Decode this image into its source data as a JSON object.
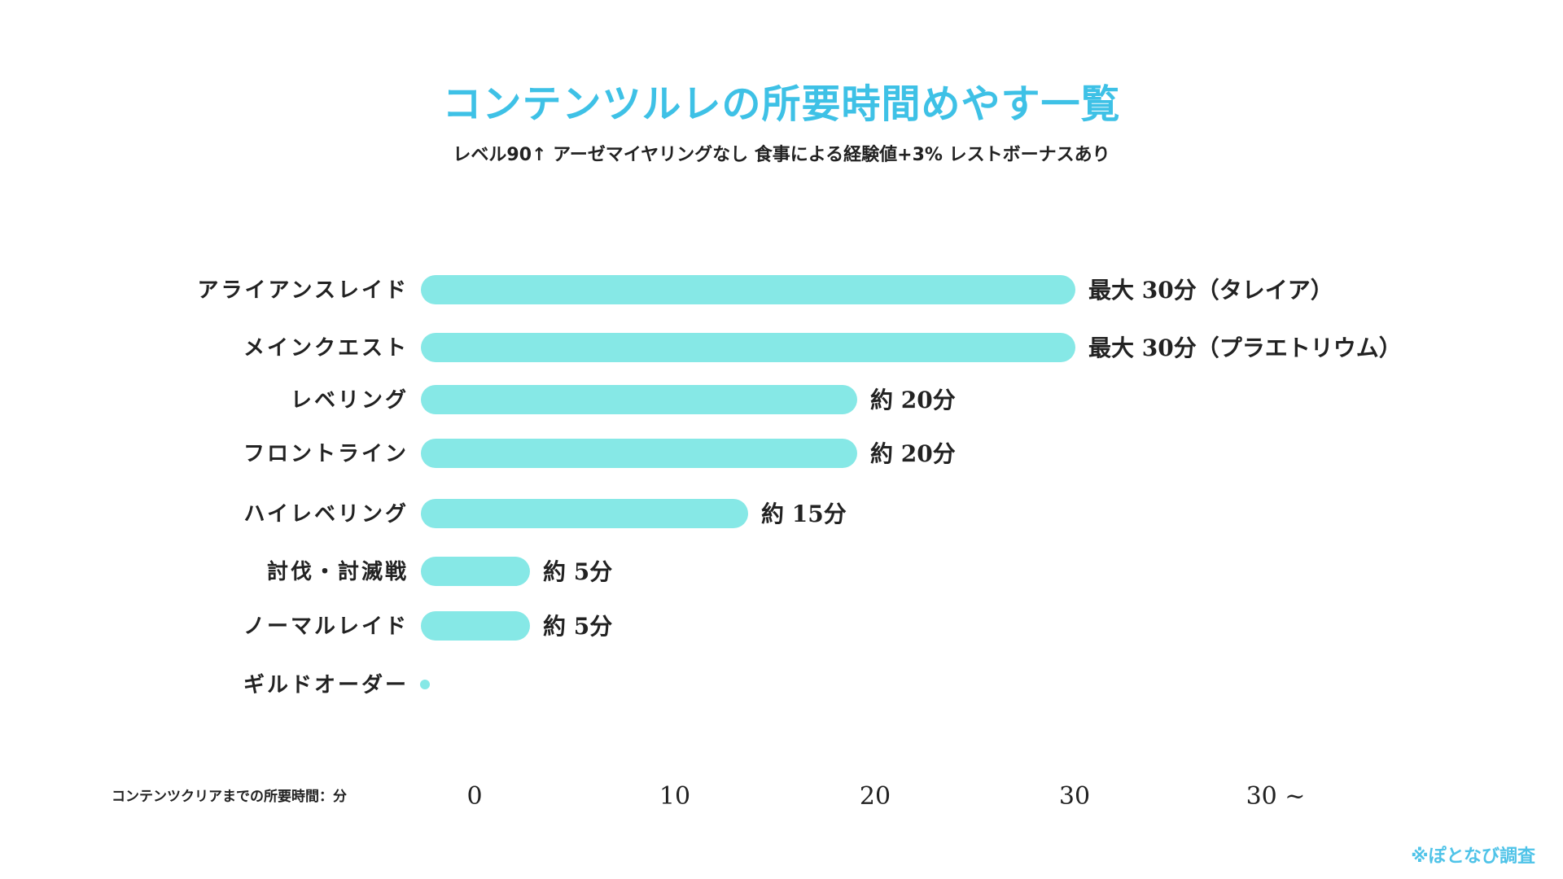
{
  "chart_data": {
    "type": "bar",
    "orientation": "horizontal",
    "title": "コンテンツルレの所要時間めやす一覧",
    "subtitle": "レベル90↑ アーゼマイヤリングなし 食事による経験値+3% レストボーナスあり",
    "xlabel": "コンテンツクリアまでの所要時間：分",
    "xticks": [
      "0",
      "10",
      "20",
      "30",
      "30 ~"
    ],
    "xlim": [
      0,
      30
    ],
    "categories": [
      "アライアンスレイド",
      "メインクエスト",
      "レベリング",
      "フロントライン",
      "ハイレベリング",
      "討伐・討滅戦",
      "ノーマルレイド",
      "ギルドオーダー"
    ],
    "values": [
      30,
      30,
      20,
      20,
      15,
      5,
      5,
      0
    ],
    "data_labels": [
      "最大 30分（タレイア）",
      "最大 30分（プラエトリウム）",
      "約 20分",
      "約 20分",
      "約 15分",
      "約 5分",
      "約 5分",
      ""
    ],
    "bar_color": "#86e8e6",
    "grid": false,
    "legend": "none"
  },
  "footer": "※ぽとなび調査",
  "colors": {
    "title": "#3ec1e6",
    "footer": "#4fc3e8"
  }
}
